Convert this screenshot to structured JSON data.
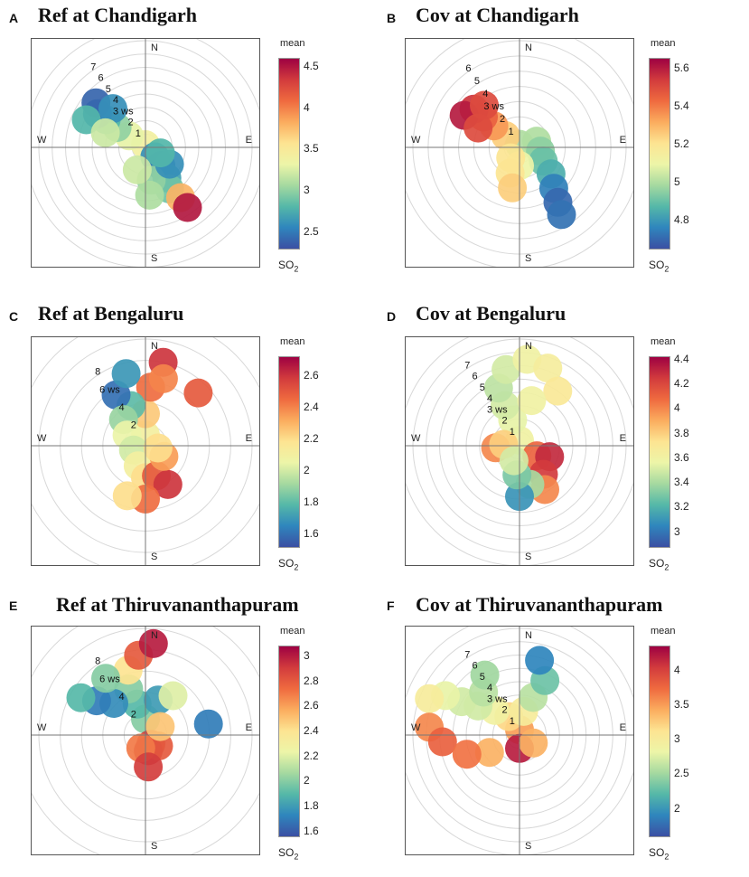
{
  "colorscale": [
    "#3b4fa3",
    "#2f86bd",
    "#55b8a8",
    "#a5d9a0",
    "#edf5a8",
    "#fde492",
    "#fbac5e",
    "#ef6a3f",
    "#d23b3d",
    "#9e0142"
  ],
  "common": {
    "legend_title": "mean",
    "unit_main": "SO",
    "unit_sub": "2",
    "compass": {
      "north": "N",
      "south": "S",
      "east": "E",
      "west": "W"
    },
    "ws_suffix": "ws"
  },
  "panels": [
    {
      "letter": "A",
      "title": "Ref at Chandigarh",
      "legend_ticks": [
        "4.5",
        "4",
        "3.5",
        "3",
        "2.5"
      ],
      "legend_range": [
        2.3,
        4.6
      ],
      "ring_labels": [
        "1",
        "2",
        "3 ws",
        "4",
        "5",
        "6",
        "7"
      ],
      "blobs": [
        {
          "bearing": 0,
          "ws": 0.2,
          "v": 3.4
        },
        {
          "bearing": 305,
          "ws": 1.5,
          "v": 3.3
        },
        {
          "bearing": 305,
          "ws": 2.6,
          "v": 3.0
        },
        {
          "bearing": 305,
          "ws": 3.6,
          "v": 2.8
        },
        {
          "bearing": 305,
          "ws": 4.4,
          "v": 2.5
        },
        {
          "bearing": 312,
          "ws": 5.0,
          "v": 2.4
        },
        {
          "bearing": 295,
          "ws": 4.9,
          "v": 2.8
        },
        {
          "bearing": 320,
          "ws": 3.8,
          "v": 2.6
        },
        {
          "bearing": 290,
          "ws": 3.2,
          "v": 3.2
        },
        {
          "bearing": 135,
          "ws": 1.0,
          "v": 2.6
        },
        {
          "bearing": 140,
          "ws": 1.8,
          "v": 2.5
        },
        {
          "bearing": 145,
          "ws": 2.8,
          "v": 2.7
        },
        {
          "bearing": 150,
          "ws": 3.6,
          "v": 2.9
        },
        {
          "bearing": 170,
          "ws": 2.5,
          "v": 3.0
        },
        {
          "bearing": 175,
          "ws": 3.6,
          "v": 3.1
        },
        {
          "bearing": 125,
          "ws": 2.2,
          "v": 2.6
        },
        {
          "bearing": 110,
          "ws": 1.2,
          "v": 2.8
        },
        {
          "bearing": 145,
          "ws": 4.6,
          "v": 3.8
        },
        {
          "bearing": 145,
          "ws": 5.5,
          "v": 4.5
        },
        {
          "bearing": 200,
          "ws": 1.8,
          "v": 3.2
        }
      ]
    },
    {
      "letter": "B",
      "title": "Cov at Chandigarh",
      "legend_ticks": [
        "5.6",
        "5.4",
        "5.2",
        "5",
        "4.8"
      ],
      "legend_range": [
        4.65,
        5.65
      ],
      "ring_labels": [
        "1",
        "2",
        "3 ws",
        "4",
        "5",
        "6"
      ],
      "blobs": [
        {
          "bearing": 0,
          "ws": 0.2,
          "v": 5.0
        },
        {
          "bearing": 310,
          "ws": 1.2,
          "v": 5.25
        },
        {
          "bearing": 310,
          "ws": 2.2,
          "v": 5.35
        },
        {
          "bearing": 310,
          "ws": 3.1,
          "v": 5.45
        },
        {
          "bearing": 310,
          "ws": 3.9,
          "v": 5.55
        },
        {
          "bearing": 300,
          "ws": 4.2,
          "v": 5.6
        },
        {
          "bearing": 320,
          "ws": 3.6,
          "v": 5.5
        },
        {
          "bearing": 295,
          "ws": 3.0,
          "v": 5.5
        },
        {
          "bearing": 70,
          "ws": 1.2,
          "v": 5.0
        },
        {
          "bearing": 100,
          "ws": 1.4,
          "v": 4.95
        },
        {
          "bearing": 120,
          "ws": 1.8,
          "v": 4.9
        },
        {
          "bearing": 130,
          "ws": 2.7,
          "v": 4.85
        },
        {
          "bearing": 140,
          "ws": 3.5,
          "v": 4.75
        },
        {
          "bearing": 145,
          "ws": 4.4,
          "v": 4.7
        },
        {
          "bearing": 148,
          "ws": 5.2,
          "v": 4.72
        },
        {
          "bearing": 180,
          "ws": 1.2,
          "v": 5.1
        },
        {
          "bearing": 200,
          "ws": 1.8,
          "v": 5.2
        },
        {
          "bearing": 190,
          "ws": 2.7,
          "v": 5.25
        },
        {
          "bearing": 220,
          "ws": 0.9,
          "v": 5.2
        }
      ]
    },
    {
      "letter": "C",
      "title": "Ref at Bengaluru",
      "legend_ticks": [
        "2.6",
        "2.4",
        "2.2",
        "2",
        "1.8",
        "1.6"
      ],
      "legend_range": [
        1.52,
        2.72
      ],
      "ring_labels": [
        "2",
        "4",
        "6 ws",
        "8"
      ],
      "blobs": [
        {
          "bearing": 0,
          "ws": 1.0,
          "v": 2.1
        },
        {
          "bearing": 0,
          "ws": 3.0,
          "v": 2.25
        },
        {
          "bearing": 5,
          "ws": 5.5,
          "v": 2.45
        },
        {
          "bearing": 12,
          "ws": 8.0,
          "v": 2.6
        },
        {
          "bearing": 45,
          "ws": 7.0,
          "v": 2.5
        },
        {
          "bearing": 15,
          "ws": 6.5,
          "v": 2.4
        },
        {
          "bearing": 340,
          "ws": 4.0,
          "v": 1.8
        },
        {
          "bearing": 330,
          "ws": 5.5,
          "v": 1.6
        },
        {
          "bearing": 345,
          "ws": 7.0,
          "v": 1.7
        },
        {
          "bearing": 320,
          "ws": 3.2,
          "v": 1.9
        },
        {
          "bearing": 300,
          "ws": 2.0,
          "v": 2.05
        },
        {
          "bearing": 250,
          "ws": 1.2,
          "v": 2.0
        },
        {
          "bearing": 200,
          "ws": 2.0,
          "v": 2.1
        },
        {
          "bearing": 180,
          "ws": 3.0,
          "v": 2.2
        },
        {
          "bearing": 160,
          "ws": 3.0,
          "v": 2.5
        },
        {
          "bearing": 150,
          "ws": 4.2,
          "v": 2.6
        },
        {
          "bearing": 180,
          "ws": 5.0,
          "v": 2.45
        },
        {
          "bearing": 200,
          "ws": 5.0,
          "v": 2.2
        },
        {
          "bearing": 120,
          "ws": 2.0,
          "v": 2.35
        },
        {
          "bearing": 100,
          "ws": 1.2,
          "v": 2.2
        }
      ]
    },
    {
      "letter": "D",
      "title": "Cov at Bengaluru",
      "legend_ticks": [
        "4.4",
        "4.2",
        "4",
        "3.8",
        "3.6",
        "3.4",
        "3.2",
        "3"
      ],
      "legend_range": [
        2.88,
        4.42
      ],
      "ring_labels": [
        "1",
        "2",
        "3 ws",
        "4",
        "5",
        "6",
        "7"
      ],
      "blobs": [
        {
          "bearing": 0,
          "ws": 0.4,
          "v": 3.6
        },
        {
          "bearing": 345,
          "ws": 2.0,
          "v": 3.55
        },
        {
          "bearing": 340,
          "ws": 3.2,
          "v": 3.5
        },
        {
          "bearing": 340,
          "ws": 4.6,
          "v": 3.45
        },
        {
          "bearing": 350,
          "ws": 5.8,
          "v": 3.5
        },
        {
          "bearing": 5,
          "ws": 6.5,
          "v": 3.6
        },
        {
          "bearing": 20,
          "ws": 6.2,
          "v": 3.65
        },
        {
          "bearing": 35,
          "ws": 5.0,
          "v": 3.7
        },
        {
          "bearing": 15,
          "ws": 3.5,
          "v": 3.6
        },
        {
          "bearing": 265,
          "ws": 1.8,
          "v": 4.0
        },
        {
          "bearing": 275,
          "ws": 1.2,
          "v": 3.8
        },
        {
          "bearing": 120,
          "ws": 1.5,
          "v": 4.1
        },
        {
          "bearing": 110,
          "ws": 2.4,
          "v": 4.3
        },
        {
          "bearing": 140,
          "ws": 2.8,
          "v": 4.25
        },
        {
          "bearing": 150,
          "ws": 3.8,
          "v": 4.0
        },
        {
          "bearing": 165,
          "ws": 3.0,
          "v": 3.4
        },
        {
          "bearing": 180,
          "ws": 3.8,
          "v": 3.1
        },
        {
          "bearing": 185,
          "ws": 2.2,
          "v": 3.3
        },
        {
          "bearing": 200,
          "ws": 1.2,
          "v": 3.5
        }
      ]
    },
    {
      "letter": "E",
      "title": "Ref at Thiruvananthapuram",
      "legend_ticks": [
        "3",
        "2.8",
        "2.6",
        "2.4",
        "2.2",
        "2",
        "1.8",
        "1.6"
      ],
      "legend_range": [
        1.56,
        3.08
      ],
      "ring_labels": [
        "2",
        "4",
        "6 ws",
        "8"
      ],
      "blobs": [
        {
          "bearing": 0,
          "ws": 1.5,
          "v": 2.0
        },
        {
          "bearing": 345,
          "ws": 3.0,
          "v": 1.9
        },
        {
          "bearing": 340,
          "ws": 4.6,
          "v": 2.0
        },
        {
          "bearing": 345,
          "ws": 6.3,
          "v": 2.4
        },
        {
          "bearing": 355,
          "ws": 7.5,
          "v": 2.8
        },
        {
          "bearing": 5,
          "ws": 8.6,
          "v": 3.0
        },
        {
          "bearing": 315,
          "ws": 4.2,
          "v": 1.75
        },
        {
          "bearing": 305,
          "ws": 5.6,
          "v": 1.7
        },
        {
          "bearing": 300,
          "ws": 7.0,
          "v": 1.9
        },
        {
          "bearing": 325,
          "ws": 6.5,
          "v": 2.0
        },
        {
          "bearing": 20,
          "ws": 3.5,
          "v": 1.8
        },
        {
          "bearing": 35,
          "ws": 4.5,
          "v": 2.2
        },
        {
          "bearing": 80,
          "ws": 6.0,
          "v": 1.7
        },
        {
          "bearing": 150,
          "ws": 1.0,
          "v": 2.9
        },
        {
          "bearing": 170,
          "ws": 1.5,
          "v": 3.0
        },
        {
          "bearing": 130,
          "ws": 1.6,
          "v": 2.8
        },
        {
          "bearing": 200,
          "ws": 1.3,
          "v": 2.7
        },
        {
          "bearing": 175,
          "ws": 3.0,
          "v": 2.9
        },
        {
          "bearing": 60,
          "ws": 1.6,
          "v": 2.5
        }
      ]
    },
    {
      "letter": "F",
      "title": "Cov at Thiruvananthapuram",
      "legend_ticks": [
        "4",
        "3.5",
        "3",
        "2.5",
        "2"
      ],
      "legend_range": [
        1.6,
        4.35
      ],
      "ring_labels": [
        "1",
        "2",
        "3 ws",
        "4",
        "5",
        "6",
        "7"
      ],
      "blobs": [
        {
          "bearing": 0,
          "ws": 0.4,
          "v": 3.5
        },
        {
          "bearing": 180,
          "ws": 1.0,
          "v": 4.2
        },
        {
          "bearing": 330,
          "ws": 1.6,
          "v": 3.2
        },
        {
          "bearing": 315,
          "ws": 2.6,
          "v": 2.9
        },
        {
          "bearing": 305,
          "ws": 3.8,
          "v": 2.7
        },
        {
          "bearing": 300,
          "ws": 5.0,
          "v": 2.7
        },
        {
          "bearing": 298,
          "ws": 6.3,
          "v": 2.8
        },
        {
          "bearing": 292,
          "ws": 7.3,
          "v": 3.0
        },
        {
          "bearing": 275,
          "ws": 6.8,
          "v": 3.6
        },
        {
          "bearing": 265,
          "ws": 5.8,
          "v": 3.8
        },
        {
          "bearing": 320,
          "ws": 4.2,
          "v": 2.6
        },
        {
          "bearing": 330,
          "ws": 5.2,
          "v": 2.5
        },
        {
          "bearing": 10,
          "ws": 1.8,
          "v": 3.0
        },
        {
          "bearing": 20,
          "ws": 3.0,
          "v": 2.6
        },
        {
          "bearing": 25,
          "ws": 4.5,
          "v": 2.3
        },
        {
          "bearing": 15,
          "ws": 5.8,
          "v": 1.9
        },
        {
          "bearing": 120,
          "ws": 1.2,
          "v": 3.4
        },
        {
          "bearing": 240,
          "ws": 2.6,
          "v": 3.4
        },
        {
          "bearing": 250,
          "ws": 4.2,
          "v": 3.7
        }
      ]
    }
  ]
}
